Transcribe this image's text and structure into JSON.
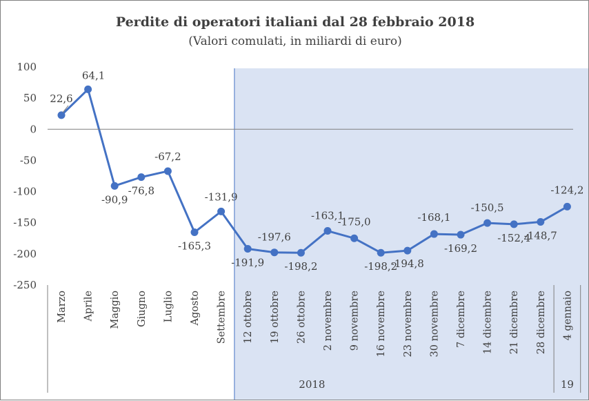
{
  "chart_data": {
    "type": "line",
    "title": "Perdite di operatori italiani dal 28 febbraio 2018",
    "subtitle": "(Valori comulati, in miliardi di euro)",
    "categories": [
      "Marzo",
      "Aprile",
      "Maggio",
      "Giugno",
      "Luglio",
      "Agosto",
      "Settembre",
      "12 ottobre",
      "19 ottobre",
      "26 ottobre",
      "2 novembre",
      "9 novembre",
      "16 novembre",
      "23 novembre",
      "30 novembre",
      "7 dicembre",
      "14 dicembre",
      "21 dicembre",
      "28 dicembre",
      "4 gennaio"
    ],
    "values": [
      22.6,
      64.1,
      -90.9,
      -76.8,
      -67.2,
      -165.3,
      -131.9,
      -191.9,
      -197.6,
      -198.2,
      -163.1,
      -175.0,
      -198.2,
      -194.8,
      -168.1,
      -169.2,
      -150.5,
      -152.4,
      -148.7,
      -124.2
    ],
    "data_labels": [
      "22,6",
      "64,1",
      "-90,9",
      "-76,8",
      "-67,2",
      "-165,3",
      "-131,9",
      "-191,9",
      "-197,6",
      "-198,2",
      "-163,1",
      "-175,0",
      "-198,2",
      "-194,8",
      "-168,1",
      "-169,2",
      "-150,5",
      "-152,4",
      "-148,7",
      "-124,2"
    ],
    "yticks": [
      100,
      50,
      0,
      -50,
      -100,
      -150,
      -200,
      -250
    ],
    "ylim": [
      -250,
      100
    ],
    "year_groups": [
      {
        "label": "2018",
        "from": 0,
        "to": 18
      },
      {
        "label": "19",
        "from": 19,
        "to": 19
      }
    ],
    "highlight_from_category": 7,
    "colors": {
      "line": "#4472c4",
      "highlight": "#dae3f3",
      "text": "#404040",
      "axis": "#7f7f7f"
    },
    "grid": false,
    "legend": "none"
  }
}
